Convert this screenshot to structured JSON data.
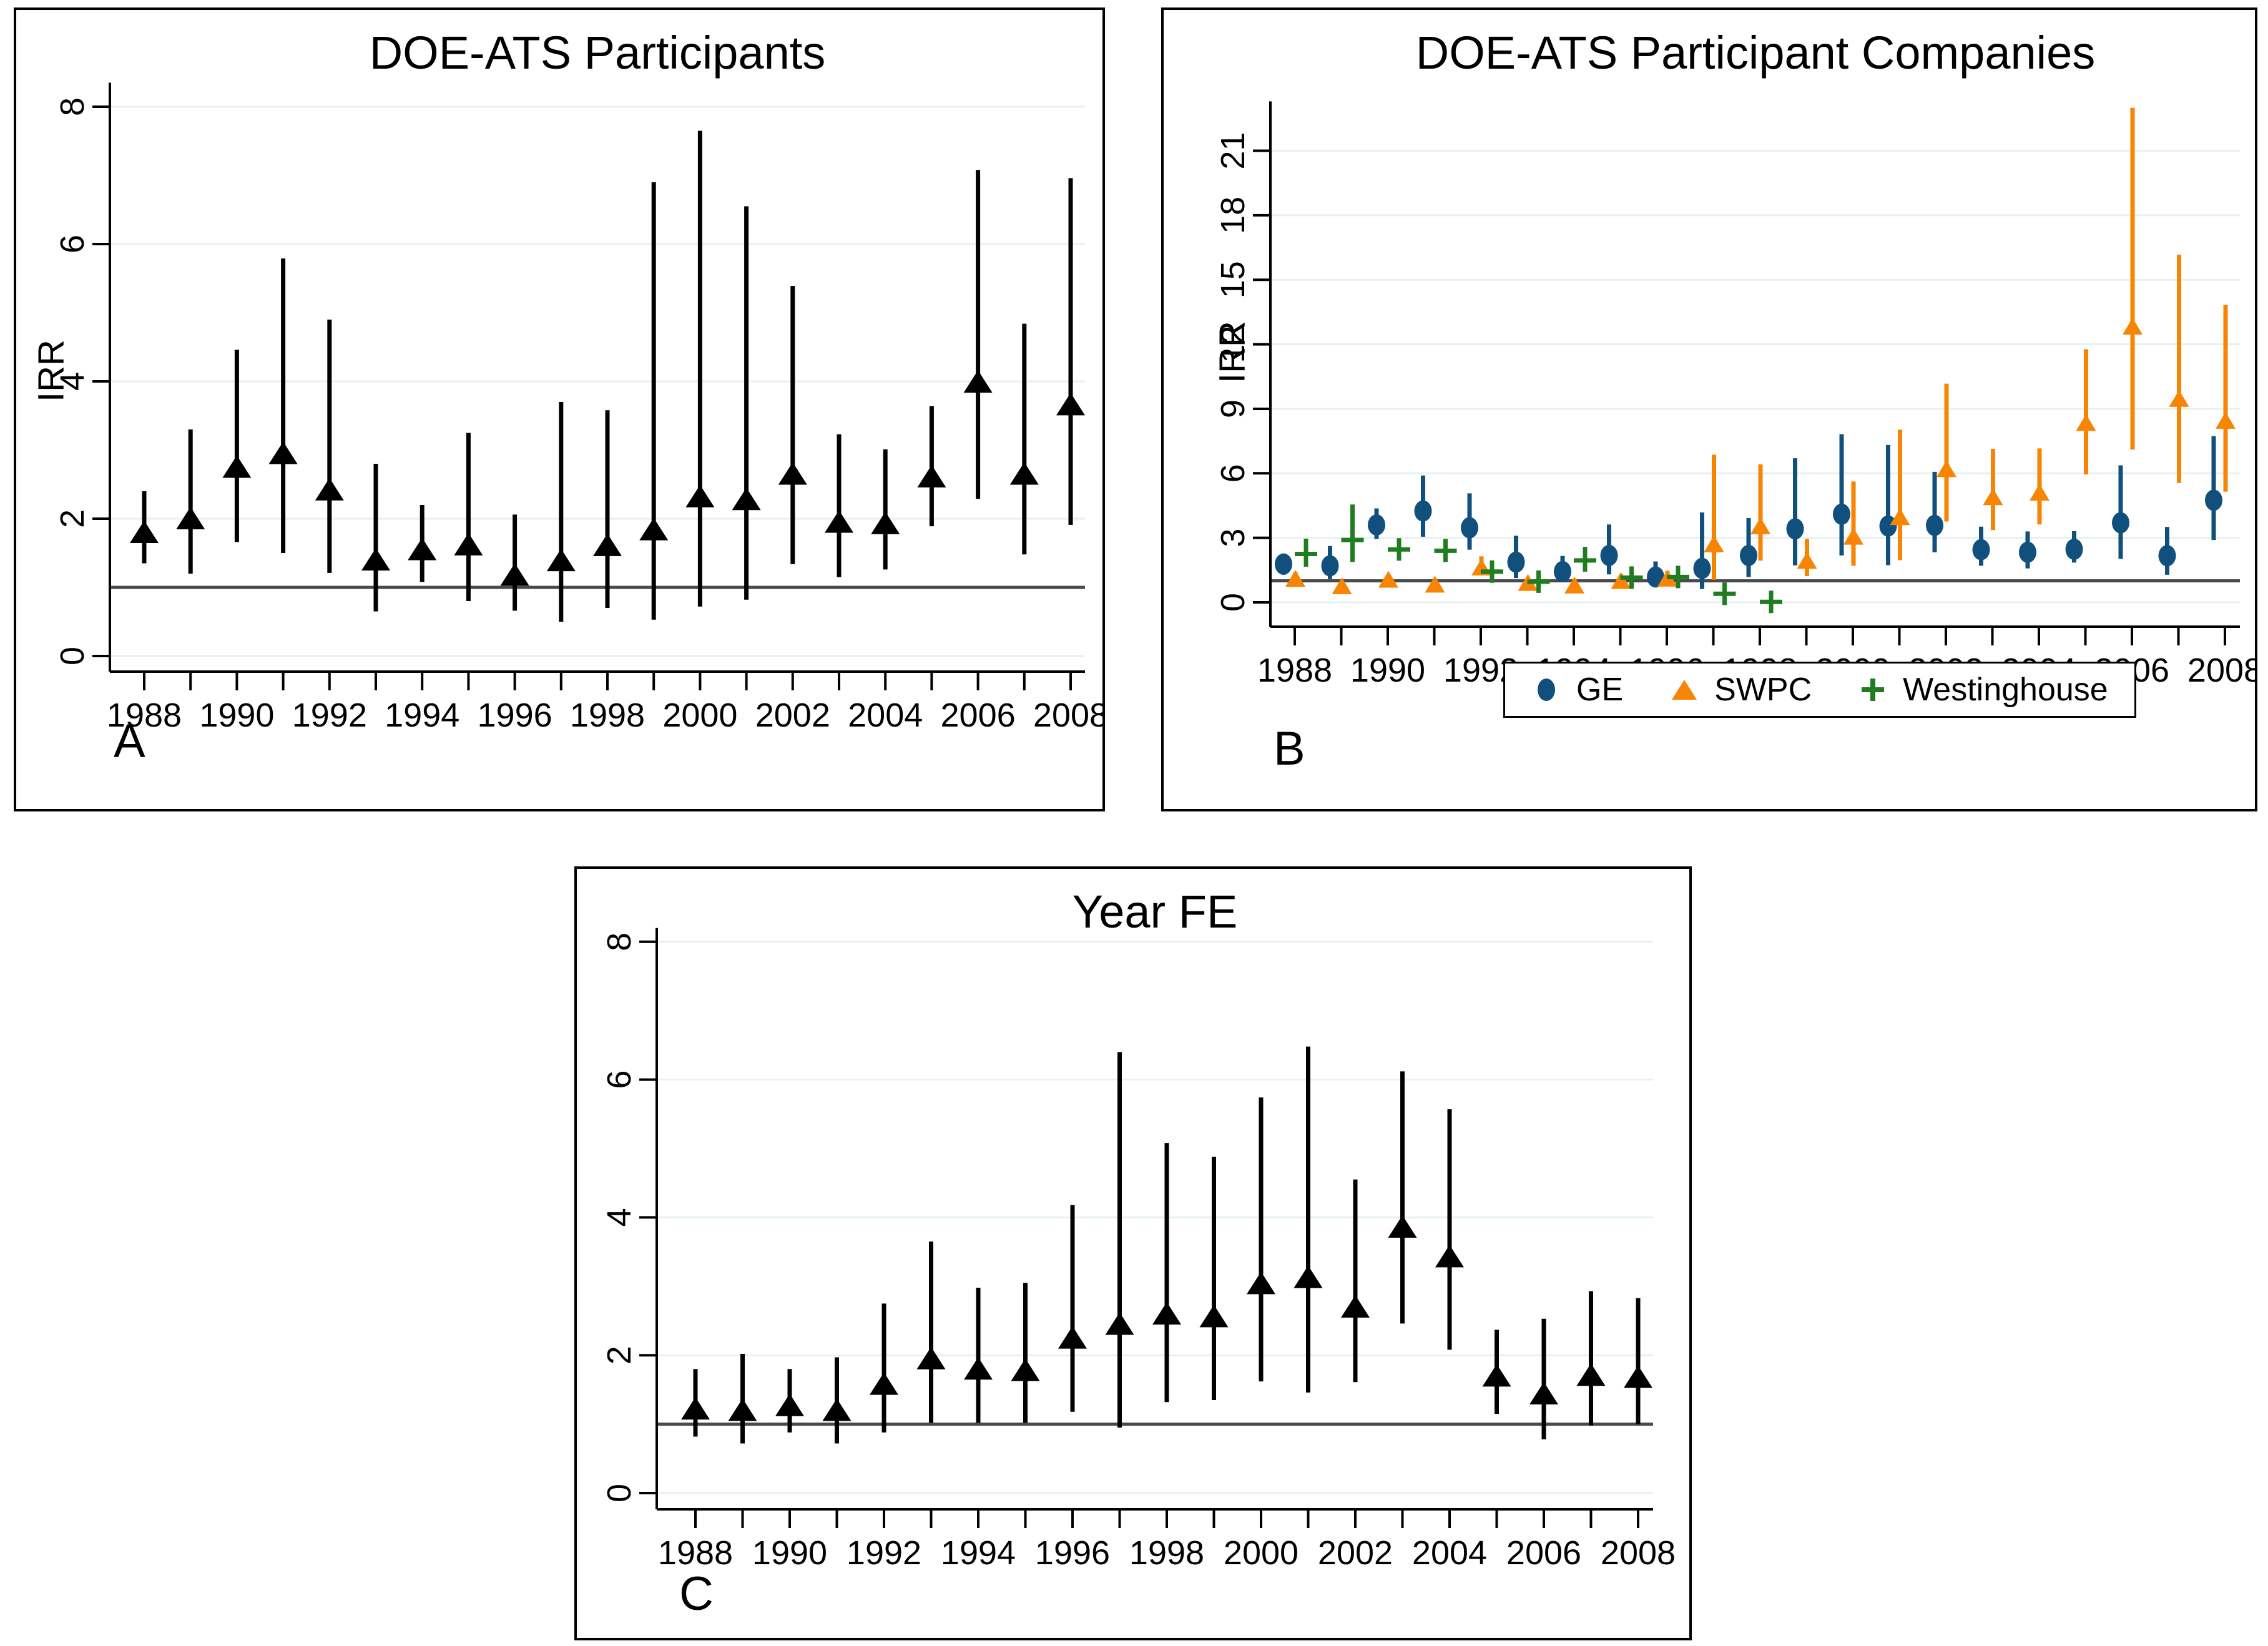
{
  "figure": {
    "background": "#ffffff",
    "ref_line_color": "#4a4a4a",
    "grid_color": "#e7f1f2",
    "axis_color": "#000000"
  },
  "colors": {
    "black": "#000000",
    "navy": "#11507d",
    "orange": "#f88403",
    "green": "#1f7d1f",
    "grid": "#e7f1f2",
    "ref": "#4a4a4a"
  },
  "chart_data": [
    {
      "type": "scatter",
      "title": "DOE-ATS Participants",
      "ylabel": "IRR",
      "panel_letter": "A",
      "ylim": [
        0,
        8.35
      ],
      "y_ticks": [
        0,
        2,
        4,
        6,
        8
      ],
      "ref_line": 1,
      "grid": true,
      "years": [
        1988,
        1989,
        1990,
        1991,
        1992,
        1993,
        1994,
        1995,
        1996,
        1997,
        1998,
        1999,
        2000,
        2001,
        2002,
        2003,
        2004,
        2005,
        2006,
        2007,
        2008
      ],
      "x_tick_labels": [
        "1988",
        "1990",
        "1992",
        "1994",
        "1996",
        "1998",
        "2000",
        "2002",
        "2004",
        "2006",
        "2008"
      ],
      "series": [
        {
          "marker": "triangle",
          "color_key": "black",
          "irr": [
            1.8,
            2.0,
            2.75,
            2.95,
            2.42,
            1.4,
            1.55,
            1.62,
            1.18,
            1.39,
            1.61,
            1.84,
            2.32,
            2.28,
            2.65,
            1.95,
            1.93,
            2.61,
            3.99,
            2.65,
            3.66
          ],
          "ci_low": [
            1.35,
            1.2,
            1.66,
            1.5,
            1.21,
            0.65,
            1.08,
            0.8,
            0.66,
            0.5,
            0.7,
            0.53,
            0.72,
            0.82,
            1.34,
            1.15,
            1.26,
            1.89,
            2.29,
            1.48,
            1.91
          ],
          "ci_high": [
            2.4,
            3.3,
            4.46,
            5.79,
            4.9,
            2.8,
            2.2,
            3.25,
            2.06,
            3.7,
            3.58,
            6.9,
            7.65,
            6.55,
            5.39,
            3.23,
            3.01,
            3.64,
            7.08,
            4.84,
            6.96
          ]
        }
      ]
    },
    {
      "type": "scatter",
      "title": "DOE-ATS Participant Companies",
      "ylabel": "IRR",
      "panel_letter": "B",
      "ylim": [
        0,
        23.3
      ],
      "y_ticks": [
        0,
        3,
        6,
        9,
        12,
        15,
        18,
        21
      ],
      "ref_line": 1,
      "grid": true,
      "legend_position": "bottom",
      "years": [
        1988,
        1989,
        1990,
        1991,
        1992,
        1993,
        1994,
        1995,
        1996,
        1997,
        1998,
        1999,
        2000,
        2001,
        2002,
        2003,
        2004,
        2005,
        2006,
        2007,
        2008
      ],
      "x_tick_labels": [
        "1988",
        "1990",
        "1992",
        "1994",
        "1996",
        "1998",
        "2000",
        "2002",
        "2004",
        "2006",
        "2008"
      ],
      "series": [
        {
          "name": "GE",
          "marker": "circle",
          "color_key": "navy",
          "irr": [
            1.78,
            1.7,
            3.6,
            4.25,
            3.47,
            1.87,
            1.43,
            2.18,
            1.18,
            1.58,
            2.18,
            3.42,
            4.1,
            3.55,
            3.58,
            2.45,
            2.33,
            2.47,
            3.7,
            2.17,
            4.75
          ],
          "ci_low": [
            1.28,
            1.08,
            2.95,
            3.05,
            2.45,
            1.13,
            0.95,
            1.3,
            0.77,
            0.62,
            1.18,
            1.72,
            2.18,
            1.73,
            2.33,
            1.7,
            1.58,
            1.85,
            2.02,
            1.28,
            2.9
          ],
          "ci_high": [
            2.27,
            2.62,
            4.37,
            5.9,
            5.07,
            3.1,
            2.16,
            3.62,
            1.9,
            4.18,
            3.92,
            6.7,
            7.82,
            7.32,
            6.07,
            3.52,
            3.3,
            3.31,
            6.37,
            3.51,
            7.73
          ]
        },
        {
          "name": "SWPC",
          "marker": "triangle",
          "color_key": "orange",
          "irr": [
            1.1,
            0.76,
            1.06,
            0.83,
            1.63,
            0.91,
            0.79,
            1.0,
            1.11,
            2.71,
            3.55,
            1.94,
            3.06,
            3.97,
            6.2,
            4.9,
            5.11,
            8.35,
            12.83,
            9.47,
            8.45
          ],
          "ci_low": [
            0.85,
            0.56,
            0.86,
            0.62,
            1.26,
            0.7,
            0.57,
            0.77,
            0.85,
            1.05,
            1.94,
            1.22,
            1.7,
            1.96,
            3.76,
            3.36,
            3.62,
            5.95,
            7.1,
            5.55,
            5.15
          ],
          "ci_high": [
            1.42,
            1.02,
            1.31,
            1.1,
            2.14,
            1.18,
            1.08,
            1.31,
            1.46,
            6.87,
            6.42,
            2.95,
            5.62,
            8.03,
            10.17,
            7.14,
            7.16,
            11.77,
            23.0,
            16.17,
            13.83
          ]
        },
        {
          "name": "Westinghouse",
          "marker": "plus",
          "color_key": "green",
          "irr": [
            2.25,
            2.9,
            2.46,
            2.4,
            1.43,
            0.96,
            1.95,
            1.15,
            1.18,
            0.4,
            0.02,
            null,
            null,
            null,
            null,
            null,
            null,
            null,
            null,
            null,
            null
          ],
          "ci_low": [
            1.66,
            1.88,
            2.1,
            1.95,
            1.15,
            0.74,
            1.5,
            0.88,
            0.88,
            0.12,
            null,
            null,
            null,
            null,
            null,
            null,
            null,
            null,
            null,
            null,
            null
          ],
          "ci_high": [
            2.96,
            4.55,
            2.89,
            2.95,
            1.79,
            1.24,
            2.58,
            1.51,
            1.56,
            0.72,
            null,
            null,
            null,
            null,
            null,
            null,
            null,
            null,
            null,
            null,
            null
          ]
        }
      ]
    },
    {
      "type": "scatter",
      "title": "Year FE",
      "ylabel": null,
      "panel_letter": "C",
      "ylim": [
        0,
        8.2
      ],
      "y_ticks": [
        0,
        2,
        4,
        6,
        8
      ],
      "ref_line": 1,
      "grid": true,
      "years": [
        1988,
        1989,
        1990,
        1991,
        1992,
        1993,
        1994,
        1995,
        1996,
        1997,
        1998,
        1999,
        2000,
        2001,
        2002,
        2003,
        2004,
        2005,
        2006,
        2007,
        2008
      ],
      "x_tick_labels": [
        "1988",
        "1990",
        "1992",
        "1994",
        "1996",
        "1998",
        "2000",
        "2002",
        "2004",
        "2006",
        "2008"
      ],
      "series": [
        {
          "marker": "triangle",
          "color_key": "black",
          "irr": [
            1.22,
            1.2,
            1.27,
            1.2,
            1.58,
            1.95,
            1.8,
            1.78,
            2.25,
            2.45,
            2.6,
            2.56,
            3.04,
            3.13,
            2.7,
            3.86,
            3.43,
            1.7,
            1.44,
            1.71,
            1.68
          ],
          "ci_low": [
            0.82,
            0.72,
            0.88,
            0.72,
            0.88,
            1.02,
            1.02,
            1.02,
            1.18,
            0.95,
            1.32,
            1.35,
            1.62,
            1.46,
            1.61,
            2.46,
            2.08,
            1.15,
            0.78,
            0.98,
            1.0
          ],
          "ci_high": [
            1.8,
            2.02,
            1.8,
            1.97,
            2.75,
            3.65,
            2.98,
            3.05,
            4.18,
            6.4,
            5.08,
            4.88,
            5.74,
            6.48,
            4.55,
            6.12,
            5.57,
            2.37,
            2.53,
            2.93,
            2.83
          ]
        }
      ]
    }
  ]
}
